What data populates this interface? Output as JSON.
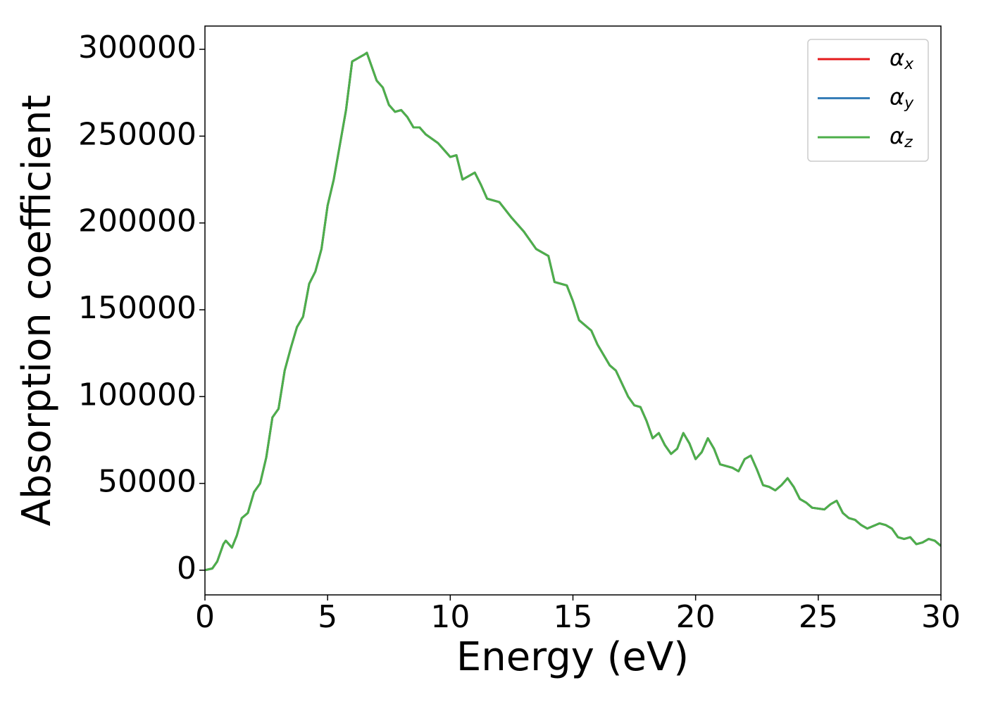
{
  "chart_data": {
    "type": "line",
    "xlabel": "Energy (eV)",
    "ylabel": "Absorption coefficient",
    "x": [
      0,
      0.3,
      0.5,
      0.75,
      0.85,
      1.1,
      1.3,
      1.5,
      1.75,
      2.0,
      2.25,
      2.5,
      2.75,
      3.0,
      3.25,
      3.5,
      3.75,
      4.0,
      4.25,
      4.5,
      4.75,
      5.0,
      5.25,
      5.5,
      5.75,
      6.0,
      6.25,
      6.5,
      6.6,
      6.8,
      7.0,
      7.25,
      7.5,
      7.75,
      8.0,
      8.25,
      8.5,
      8.75,
      9.0,
      9.5,
      10.0,
      10.25,
      10.5,
      11.0,
      11.25,
      11.5,
      12.0,
      12.5,
      13.0,
      13.5,
      14.0,
      14.25,
      14.75,
      15.0,
      15.25,
      15.75,
      16.0,
      16.5,
      16.75,
      17.25,
      17.5,
      17.75,
      18.0,
      18.25,
      18.5,
      18.75,
      19.0,
      19.25,
      19.5,
      19.75,
      20.0,
      20.25,
      20.5,
      20.75,
      21.0,
      21.5,
      21.75,
      22.0,
      22.25,
      22.5,
      22.75,
      23.0,
      23.25,
      23.5,
      23.75,
      24.0,
      24.25,
      24.5,
      24.75,
      25.25,
      25.5,
      25.75,
      26.0,
      26.25,
      26.5,
      26.75,
      27.0,
      27.5,
      27.75,
      28.0,
      28.25,
      28.5,
      28.75,
      29.0,
      29.25,
      29.5,
      29.75,
      30.0
    ],
    "series": [
      {
        "name": "αx",
        "color": "#e41a1c",
        "values": [
          0,
          1000,
          5000,
          15000,
          17000,
          13000,
          20000,
          30000,
          33000,
          45000,
          50000,
          65000,
          88000,
          93000,
          115000,
          128000,
          140000,
          146000,
          165000,
          172000,
          185000,
          210000,
          225000,
          245000,
          265000,
          293000,
          295000,
          297000,
          298000,
          290000,
          282000,
          278000,
          268000,
          264000,
          265000,
          261000,
          255000,
          255000,
          251000,
          246000,
          238000,
          239000,
          225000,
          229000,
          222000,
          214000,
          212000,
          203000,
          195000,
          185000,
          181000,
          166000,
          164000,
          155000,
          144000,
          138000,
          130000,
          118000,
          115000,
          100000,
          95000,
          94000,
          86000,
          76000,
          79000,
          72000,
          67000,
          70000,
          79000,
          73000,
          64000,
          68000,
          76000,
          70000,
          61000,
          59000,
          57000,
          64000,
          66000,
          58000,
          49000,
          48000,
          46000,
          49000,
          53000,
          48000,
          41000,
          39000,
          36000,
          35000,
          38000,
          40000,
          33000,
          30000,
          29000,
          26000,
          24000,
          27000,
          26000,
          24000,
          19000,
          18000,
          19000,
          15000,
          16000,
          18000,
          17000,
          14000
        ]
      },
      {
        "name": "αy",
        "color": "#377eb8",
        "values": [
          0,
          1000,
          5000,
          15000,
          17000,
          13000,
          20000,
          30000,
          33000,
          45000,
          50000,
          65000,
          88000,
          93000,
          115000,
          128000,
          140000,
          146000,
          165000,
          172000,
          185000,
          210000,
          225000,
          245000,
          265000,
          293000,
          295000,
          297000,
          298000,
          290000,
          282000,
          278000,
          268000,
          264000,
          265000,
          261000,
          255000,
          255000,
          251000,
          246000,
          238000,
          239000,
          225000,
          229000,
          222000,
          214000,
          212000,
          203000,
          195000,
          185000,
          181000,
          166000,
          164000,
          155000,
          144000,
          138000,
          130000,
          118000,
          115000,
          100000,
          95000,
          94000,
          86000,
          76000,
          79000,
          72000,
          67000,
          70000,
          79000,
          73000,
          64000,
          68000,
          76000,
          70000,
          61000,
          59000,
          57000,
          64000,
          66000,
          58000,
          49000,
          48000,
          46000,
          49000,
          53000,
          48000,
          41000,
          39000,
          36000,
          35000,
          38000,
          40000,
          33000,
          30000,
          29000,
          26000,
          24000,
          27000,
          26000,
          24000,
          19000,
          18000,
          19000,
          15000,
          16000,
          18000,
          17000,
          14000
        ]
      },
      {
        "name": "αz",
        "color": "#4daf4a",
        "values": [
          0,
          1000,
          5000,
          15000,
          17000,
          13000,
          20000,
          30000,
          33000,
          45000,
          50000,
          65000,
          88000,
          93000,
          115000,
          128000,
          140000,
          146000,
          165000,
          172000,
          185000,
          210000,
          225000,
          245000,
          265000,
          293000,
          295000,
          297000,
          298000,
          290000,
          282000,
          278000,
          268000,
          264000,
          265000,
          261000,
          255000,
          255000,
          251000,
          246000,
          238000,
          239000,
          225000,
          229000,
          222000,
          214000,
          212000,
          203000,
          195000,
          185000,
          181000,
          166000,
          164000,
          155000,
          144000,
          138000,
          130000,
          118000,
          115000,
          100000,
          95000,
          94000,
          86000,
          76000,
          79000,
          72000,
          67000,
          70000,
          79000,
          73000,
          64000,
          68000,
          76000,
          70000,
          61000,
          59000,
          57000,
          64000,
          66000,
          58000,
          49000,
          48000,
          46000,
          49000,
          53000,
          48000,
          41000,
          39000,
          36000,
          35000,
          38000,
          40000,
          33000,
          30000,
          29000,
          26000,
          24000,
          27000,
          26000,
          24000,
          19000,
          18000,
          19000,
          15000,
          16000,
          18000,
          17000,
          14000
        ]
      }
    ],
    "xlim": [
      0,
      30
    ],
    "xticks": [
      0,
      5,
      10,
      15,
      20,
      25,
      30
    ],
    "ylim": [
      -14200,
      313400
    ],
    "yticks": [
      0,
      50000,
      100000,
      150000,
      200000,
      250000,
      300000
    ],
    "grid": false,
    "legend": "upper right"
  }
}
